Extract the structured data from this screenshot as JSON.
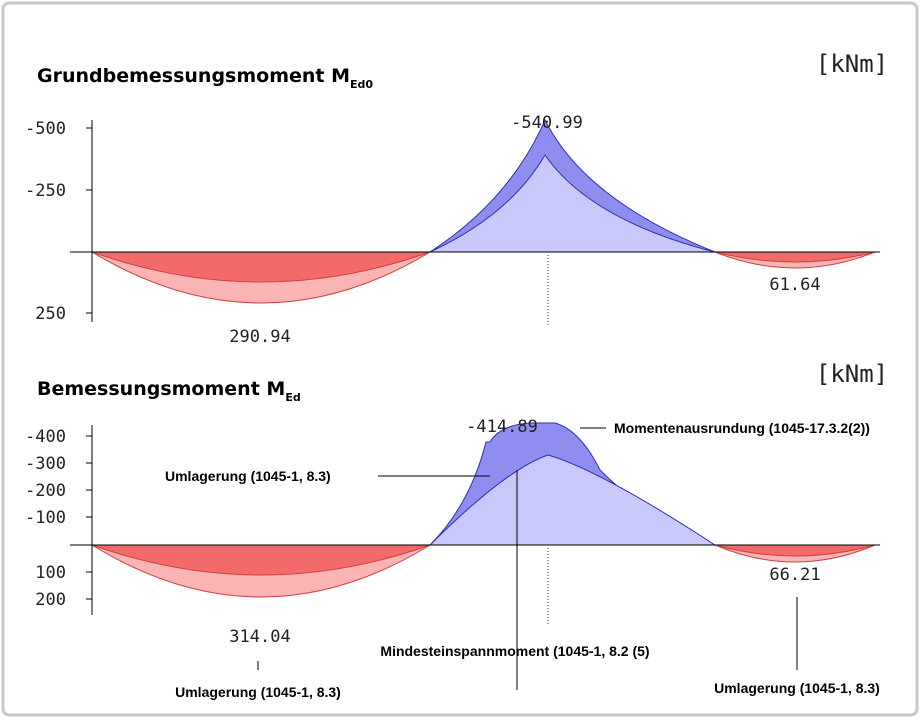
{
  "panels": [
    {
      "title": "Grundbemessungsmoment M",
      "subscript": "Ed0",
      "unit": "[kNm]",
      "tick_labels": [
        "-500",
        "-250",
        "250"
      ],
      "value_labels": [
        "-540.99",
        "290.94",
        "61.64"
      ]
    },
    {
      "title": "Bemessungsmoment M",
      "subscript": "Ed",
      "unit": "[kNm]",
      "tick_labels": [
        "-400",
        "-300",
        "-200",
        "-100",
        "100",
        "200"
      ],
      "value_labels": [
        "-414.89",
        "314.04",
        "66.21"
      ],
      "annotations": [
        "Momentenausrundung (1045-17.3.2(2))",
        "Umlagerung (1045-1, 8.3)",
        "Mindesteinspannmoment (1045-1, 8.2 (5)",
        "Umlagerung (1045-1, 8.3)",
        "Umlagerung (1045-1, 8.3)"
      ]
    }
  ]
}
